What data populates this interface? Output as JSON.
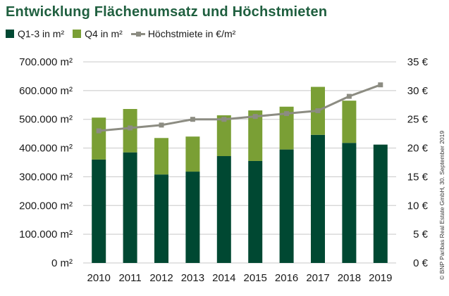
{
  "title": "Entwicklung Flächenumsatz und Höchstmieten",
  "credit": "© BNP Paribas Real Estate GmbH, 30. September 2019",
  "colors": {
    "q13": "#004832",
    "q4": "#7a9f35",
    "line": "#8c8c82",
    "grid": "#c8c8c8"
  },
  "chart_data": {
    "type": "bar",
    "stacked": true,
    "categories": [
      "2010",
      "2011",
      "2012",
      "2013",
      "2014",
      "2015",
      "2016",
      "2017",
      "2018",
      "2019"
    ],
    "series": [
      {
        "name": "Q1-3 in m²",
        "type": "bar",
        "axis": "left",
        "values": [
          360000,
          385000,
          308000,
          318000,
          372000,
          355000,
          395000,
          446000,
          418000,
          412000
        ]
      },
      {
        "name": "Q4 in m²",
        "type": "bar",
        "axis": "left",
        "values": [
          146000,
          151000,
          127000,
          122000,
          142000,
          176000,
          149000,
          167000,
          147000,
          null
        ]
      },
      {
        "name": "Höchstmiete in €/m²",
        "type": "line",
        "axis": "right",
        "values": [
          23.0,
          23.5,
          24.0,
          25.0,
          25.0,
          25.5,
          26.0,
          26.5,
          29.0,
          31.0
        ]
      }
    ],
    "ylim_left": [
      0,
      700000
    ],
    "ylim_right": [
      0,
      35
    ],
    "yticks_left": [
      "0 m²",
      "100.000 m²",
      "200.000 m²",
      "300.000 m²",
      "400.000 m²",
      "500.000 m²",
      "600.000 m²",
      "700.000 m²"
    ],
    "yticks_right": [
      "0 €",
      "5 €",
      "10 €",
      "15 €",
      "20 €",
      "25 €",
      "30 €",
      "35 €"
    ],
    "grid": true,
    "legend_position": "top-left"
  }
}
